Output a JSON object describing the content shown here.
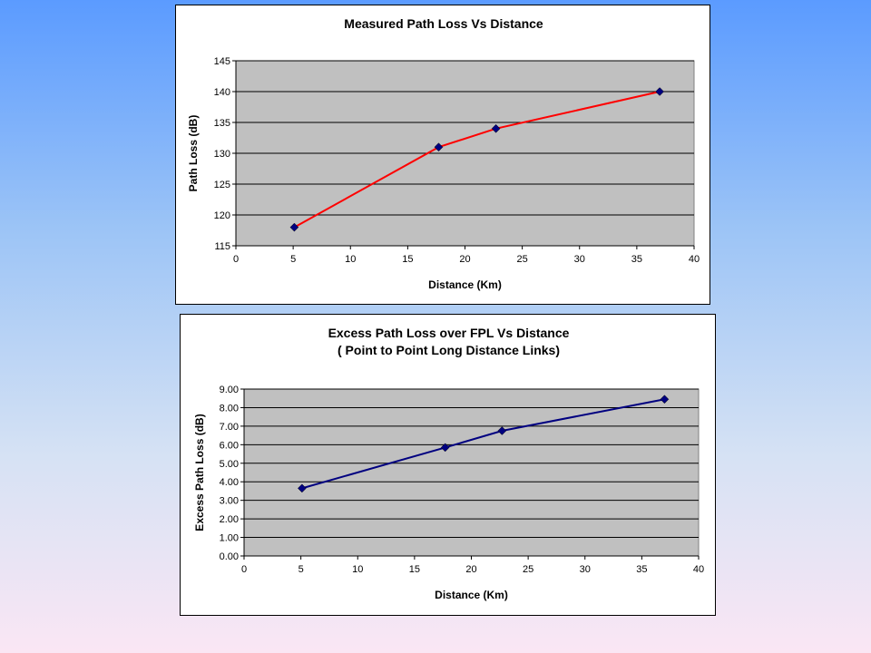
{
  "chart_data": [
    {
      "type": "line",
      "title_lines": [
        "Measured Path Loss Vs Distance"
      ],
      "xlabel": "Distance (Km)",
      "ylabel": "Path Loss (dB)",
      "xlim": [
        0,
        40
      ],
      "ylim": [
        115,
        145
      ],
      "x_ticks": [
        0,
        5,
        10,
        15,
        20,
        25,
        30,
        35,
        40
      ],
      "y_ticks": [
        115,
        120,
        125,
        130,
        135,
        140,
        145
      ],
      "y_tick_decimals": 0,
      "grid": true,
      "series": [
        {
          "x": [
            5.1,
            17.7,
            22.7,
            37
          ],
          "y": [
            118,
            131,
            134,
            140
          ],
          "line_color": "#ff0000",
          "marker_color": "#000080"
        }
      ],
      "plot_bg": "#c0c0c0"
    },
    {
      "type": "line",
      "title_lines": [
        "Excess Path Loss over FPL Vs Distance",
        "( Point to Point Long Distance Links)"
      ],
      "xlabel": "Distance (Km)",
      "ylabel": "Excess Path Loss (dB)",
      "xlim": [
        0,
        40
      ],
      "ylim": [
        0,
        9
      ],
      "x_ticks": [
        0,
        5,
        10,
        15,
        20,
        25,
        30,
        35,
        40
      ],
      "y_ticks": [
        0,
        1,
        2,
        3,
        4,
        5,
        6,
        7,
        8,
        9
      ],
      "y_tick_decimals": 2,
      "grid": true,
      "series": [
        {
          "x": [
            5.1,
            17.7,
            22.7,
            37
          ],
          "y": [
            3.65,
            5.85,
            6.75,
            8.45
          ],
          "line_color": "#000080",
          "marker_color": "#000080"
        }
      ],
      "plot_bg": "#c0c0c0"
    }
  ]
}
